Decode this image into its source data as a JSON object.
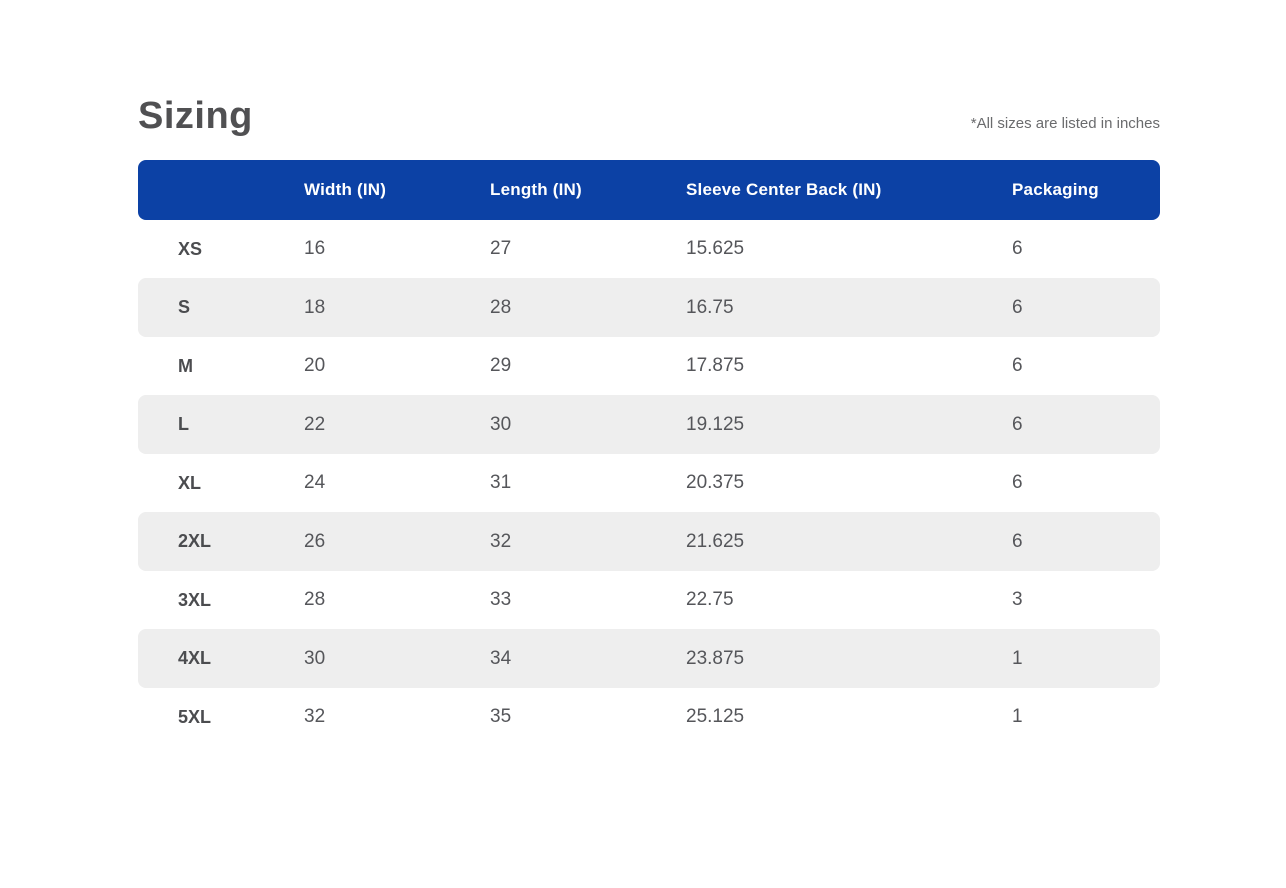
{
  "page": {
    "title": "Sizing",
    "note": "*All sizes are listed in inches"
  },
  "table": {
    "columns": [
      "",
      "Width (IN)",
      "Length (IN)",
      "Sleeve Center Back (IN)",
      "Packaging"
    ],
    "rows": [
      {
        "size": "XS",
        "width": "16",
        "length": "27",
        "sleeve": "15.625",
        "packaging": "6"
      },
      {
        "size": "S",
        "width": "18",
        "length": "28",
        "sleeve": "16.75",
        "packaging": "6"
      },
      {
        "size": "M",
        "width": "20",
        "length": "29",
        "sleeve": "17.875",
        "packaging": "6"
      },
      {
        "size": "L",
        "width": "22",
        "length": "30",
        "sleeve": "19.125",
        "packaging": "6"
      },
      {
        "size": "XL",
        "width": "24",
        "length": "31",
        "sleeve": "20.375",
        "packaging": "6"
      },
      {
        "size": "2XL",
        "width": "26",
        "length": "32",
        "sleeve": "21.625",
        "packaging": "6"
      },
      {
        "size": "3XL",
        "width": "28",
        "length": "33",
        "sleeve": "22.75",
        "packaging": "3"
      },
      {
        "size": "4XL",
        "width": "30",
        "length": "34",
        "sleeve": "23.875",
        "packaging": "1"
      },
      {
        "size": "5XL",
        "width": "32",
        "length": "35",
        "sleeve": "25.125",
        "packaging": "1"
      }
    ]
  },
  "colors": {
    "header_bg": "#0c41a5",
    "row_alt_bg": "#eeeeee",
    "title_color": "#505052",
    "label_color": "#4b4c4f",
    "value_color": "#55565a",
    "note_color": "#6a6b6d",
    "header_text": "#ffffff"
  }
}
